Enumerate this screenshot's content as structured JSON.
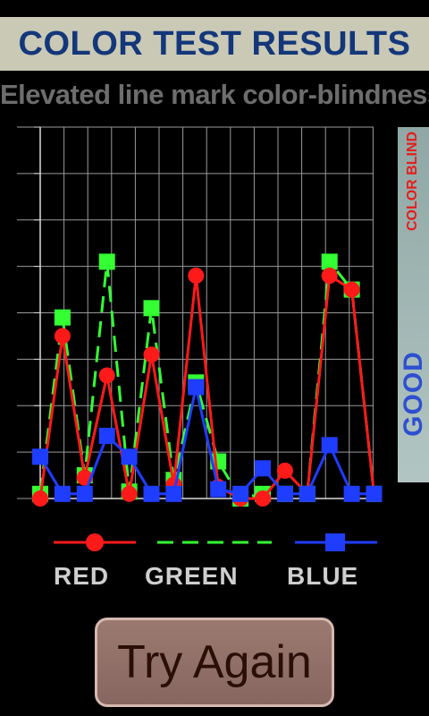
{
  "header": {
    "title": "COLOR TEST RESULTS",
    "subtitle": "Elevated line mark color-blindness"
  },
  "scale": {
    "top_label": "COLOR BLIND",
    "bottom_label": "GOOD"
  },
  "legend": {
    "items": [
      {
        "label": "RED",
        "color": "#ff1a1a",
        "style": "solid-circle"
      },
      {
        "label": "GREEN",
        "color": "#33ff33",
        "style": "dashed-square"
      },
      {
        "label": "BLUE",
        "color": "#1f3dff",
        "style": "solid-square"
      }
    ]
  },
  "buttons": {
    "try_again": "Try Again"
  },
  "chart_data": {
    "type": "line",
    "title": "",
    "xlabel": "",
    "ylabel": "",
    "x": [
      1,
      2,
      3,
      4,
      5,
      6,
      7,
      8,
      9,
      10,
      11,
      12,
      13,
      14,
      15,
      16
    ],
    "xlim": [
      0,
      15
    ],
    "ylim": [
      0,
      8
    ],
    "grid": true,
    "legend_position": "bottom",
    "series": [
      {
        "name": "RED",
        "color": "#ff1a1a",
        "marker": "circle",
        "dash": false,
        "values": [
          0.0,
          3.5,
          0.45,
          2.65,
          0.1,
          3.1,
          0.3,
          4.8,
          0.25,
          0.0,
          0.0,
          0.6,
          0.1,
          4.8,
          4.5,
          0.1
        ]
      },
      {
        "name": "GREEN",
        "color": "#33ff33",
        "marker": "square",
        "dash": true,
        "values": [
          0.1,
          3.9,
          0.5,
          5.1,
          0.15,
          4.1,
          0.4,
          2.5,
          0.8,
          0.0,
          0.1,
          0.1,
          0.1,
          5.1,
          4.5,
          0.1
        ]
      },
      {
        "name": "BLUE",
        "color": "#1f3dff",
        "marker": "square",
        "dash": false,
        "values": [
          0.9,
          0.1,
          0.1,
          1.35,
          0.9,
          0.1,
          0.1,
          2.4,
          0.2,
          0.1,
          0.65,
          0.1,
          0.1,
          1.15,
          0.1,
          0.1
        ]
      }
    ]
  }
}
